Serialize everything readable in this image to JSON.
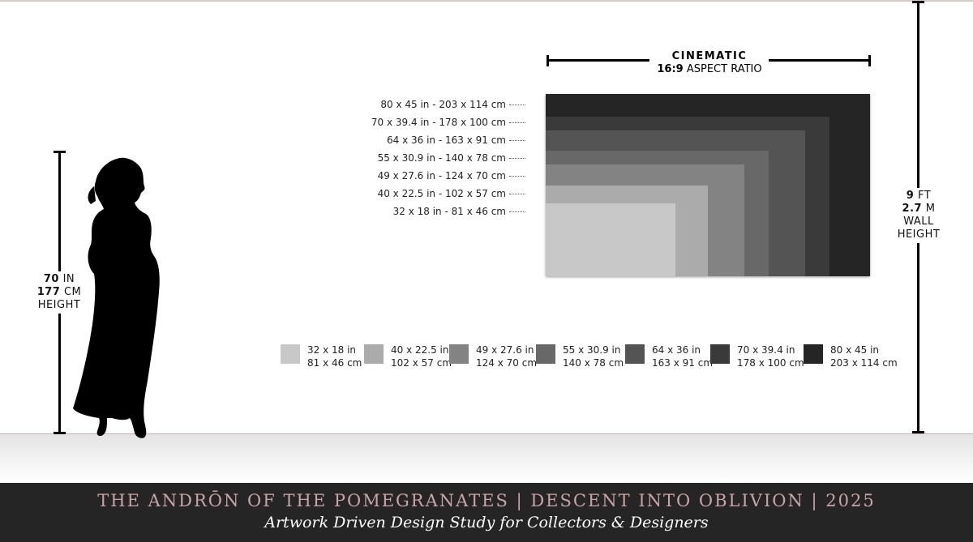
{
  "header": {
    "title": "CINEMATIC",
    "ratio_bold": "16:9",
    "ratio_text": "ASPECT RATIO"
  },
  "person": {
    "value1_bold": "70",
    "unit1": "IN",
    "value2_bold": "177",
    "unit2": "CM",
    "label": "HEIGHT"
  },
  "wall": {
    "value1_bold": "9",
    "unit1": "FT",
    "value2_bold": "2.7",
    "unit2": "M",
    "label1": "WALL",
    "label2": "HEIGHT"
  },
  "sizes": [
    {
      "label": "80 x 45 in - 203 x 114 cm",
      "in": "80 x 45 in",
      "cm": "203 x 114 cm",
      "color": "#252525",
      "w_in": 80
    },
    {
      "label": "70 x 39.4 in - 178 x 100 cm",
      "in": "70 x 39.4 in",
      "cm": "178 x 100 cm",
      "color": "#3a3a3a",
      "w_in": 70
    },
    {
      "label": "64 x 36 in - 163 x 91 cm",
      "in": "64 x 36 in",
      "cm": "163 x 91 cm",
      "color": "#545454",
      "w_in": 64
    },
    {
      "label": "55 x 30.9 in - 140 x 78 cm",
      "in": "55 x 30.9 in",
      "cm": "140 x 78 cm",
      "color": "#686868",
      "w_in": 55
    },
    {
      "label": "49 x 27.6 in - 124 x 70 cm",
      "in": "49 x 27.6 in",
      "cm": "124 x 70 cm",
      "color": "#838383",
      "w_in": 49
    },
    {
      "label": "40 x 22.5 in - 102 x 57 cm",
      "in": "40 x 22.5 in",
      "cm": "102 x 57 cm",
      "color": "#ababab",
      "w_in": 40
    },
    {
      "label": "32 x 18 in - 81 x 46 cm",
      "in": "32 x 18 in",
      "cm": "81 x 46 cm",
      "color": "#c8c8c8",
      "w_in": 32
    }
  ],
  "footer": {
    "title": "THE ANDRŌN OF THE POMEGRANATES | DESCENT INTO OBLIVION | 2025",
    "subtitle": "Artwork Driven Design Study for Collectors & Designers"
  }
}
